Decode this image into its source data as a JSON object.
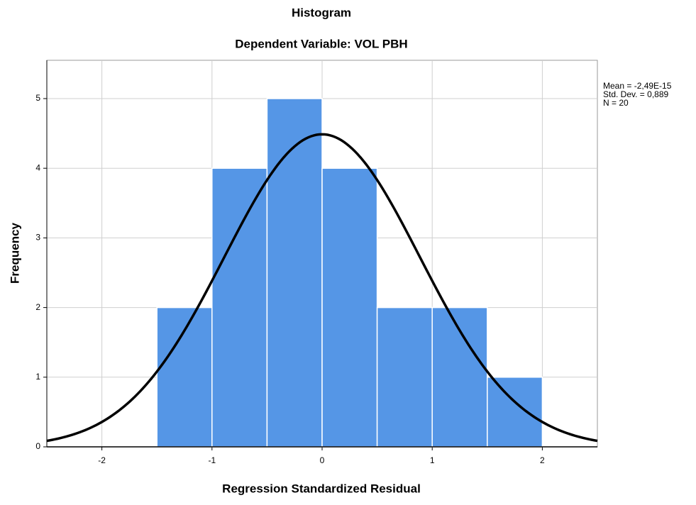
{
  "chart_data": {
    "type": "histogram",
    "title": "Histogram",
    "subtitle": "Dependent Variable: VOL PBH",
    "x_label": "Regression Standardized Residual",
    "y_label": "Frequency",
    "bins": [
      -1.5,
      -1.0,
      -0.5,
      0,
      0.5,
      1.0,
      1.5,
      2.0
    ],
    "values": [
      2,
      4,
      5,
      4,
      2,
      2,
      1
    ],
    "color": "#5596e6",
    "xlim": [
      -2.5,
      2.5
    ],
    "xticks": [
      -2,
      -1,
      0,
      1,
      2
    ],
    "ylim": [
      0,
      5.55
    ],
    "yticks": [
      0,
      1,
      2,
      3,
      4,
      5
    ],
    "grid": true,
    "stats": [
      {
        "value": -2.49e-15,
        "label": "Mean = -2,49E-15"
      },
      {
        "value": 0.889,
        "label": "Std. Dev. = 0,889"
      },
      {
        "value": 20,
        "label": "N = 20"
      }
    ]
  }
}
